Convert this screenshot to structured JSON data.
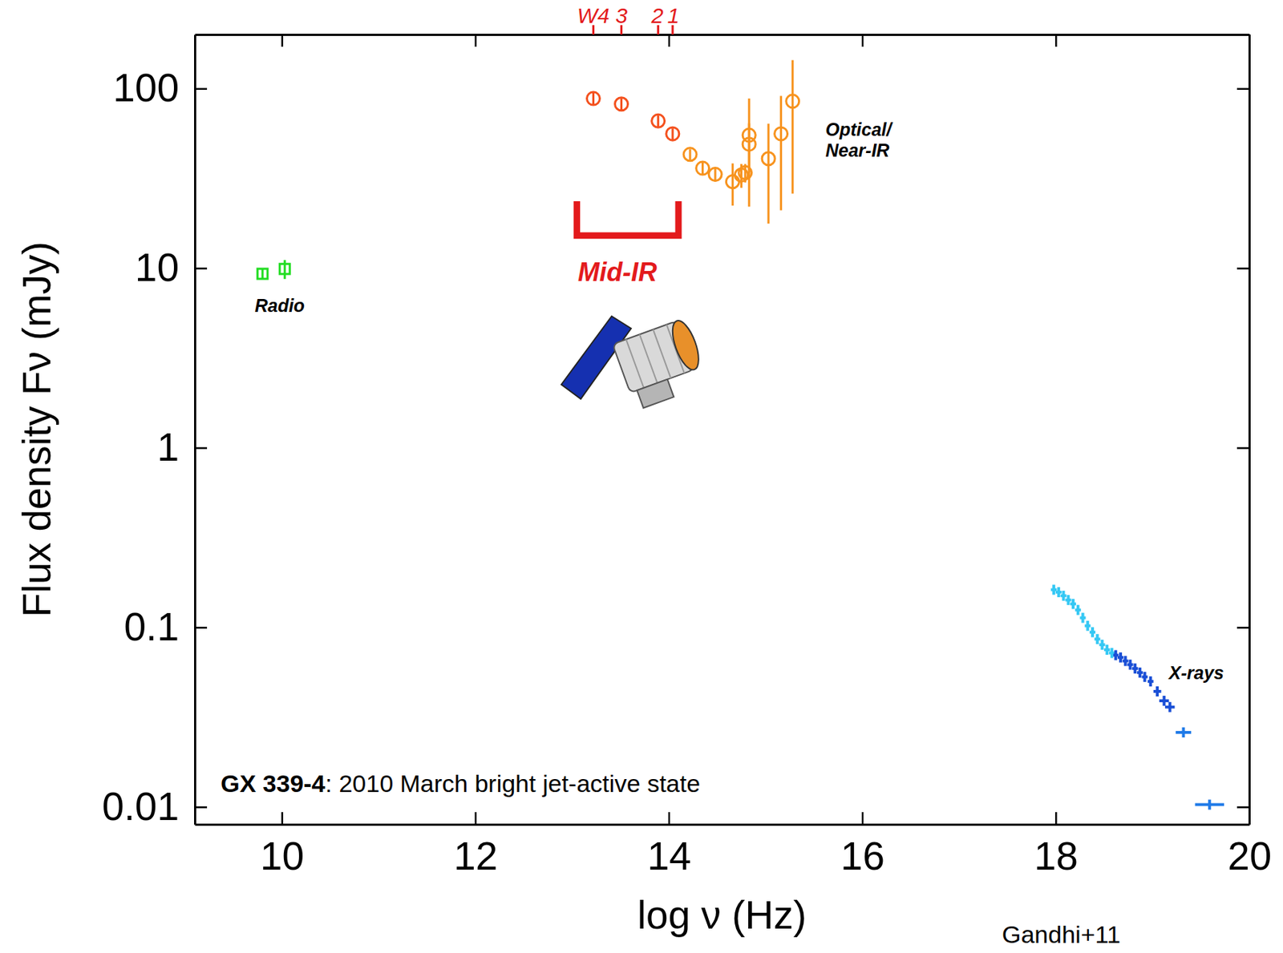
{
  "chart_data": {
    "type": "scatter",
    "x_label": "log ν (Hz)",
    "y_label": "Flux density Fν (mJy)",
    "xlim": [
      9.1,
      20
    ],
    "ylim": [
      0.008,
      200
    ],
    "xticks": [
      10,
      12,
      14,
      16,
      18,
      20
    ],
    "yticks": [
      0.01,
      0.1,
      1,
      10,
      100
    ],
    "log": "y",
    "grid": false,
    "series": [
      {
        "color": "#22dd22",
        "marker": "square",
        "x": [
          9.8,
          10.03
        ],
        "values": [
          9.3,
          9.9
        ],
        "errors": [
          0.6,
          1.2
        ]
      },
      {
        "color": "#f4511e",
        "marker": "circle",
        "x": [
          13.22,
          13.51,
          13.89,
          14.04
        ],
        "values": [
          88,
          82,
          66,
          56
        ],
        "errors": [
          7,
          6,
          5,
          4
        ]
      },
      {
        "color": "#f7931e",
        "marker": "circle",
        "x": [
          14.22,
          14.35,
          14.48,
          14.66,
          14.75,
          14.79,
          14.83,
          14.83,
          15.03,
          15.16,
          15.28
        ],
        "values": [
          43,
          36,
          33.3,
          30.3,
          33,
          34,
          49,
          55,
          40.7,
          56,
          85
        ],
        "errors": [
          3,
          3,
          3,
          8,
          5,
          4,
          15,
          33,
          23,
          35,
          59
        ]
      },
      {
        "marker": "cross",
        "x": [
          17.98,
          18.03,
          18.08,
          18.13,
          18.18,
          18.23,
          18.28,
          18.33,
          18.38,
          18.43,
          18.48,
          18.53,
          18.58,
          18.62,
          18.67,
          18.72,
          18.77,
          18.82,
          18.87,
          18.92,
          18.98,
          19.05,
          19.12,
          19.18,
          19.32,
          19.59
        ],
        "values": [
          0.162,
          0.157,
          0.15,
          0.142,
          0.135,
          0.125,
          0.113,
          0.102,
          0.094,
          0.086,
          0.08,
          0.075,
          0.072,
          0.07,
          0.068,
          0.065,
          0.062,
          0.059,
          0.056,
          0.053,
          0.05,
          0.044,
          0.039,
          0.036,
          0.026,
          0.0103
        ],
        "x_errors": [
          0.03,
          0.03,
          0.03,
          0.03,
          0.03,
          0.03,
          0.03,
          0.03,
          0.03,
          0.03,
          0.03,
          0.03,
          0.03,
          0.03,
          0.03,
          0.03,
          0.03,
          0.03,
          0.03,
          0.03,
          0.03,
          0.04,
          0.05,
          0.05,
          0.08,
          0.15
        ],
        "colors": [
          "#35c8f4",
          "#35c8f4",
          "#35c8f4",
          "#35c8f4",
          "#35c8f4",
          "#35c8f4",
          "#35c8f4",
          "#35c8f4",
          "#35c8f4",
          "#35c8f4",
          "#35c8f4",
          "#35c8f4",
          "#35c8f4",
          "#1a4fd6",
          "#1a4fd6",
          "#1a4fd6",
          "#1a4fd6",
          "#1a4fd6",
          "#1a4fd6",
          "#1a4fd6",
          "#1a4fd6",
          "#1a4fd6",
          "#1a4fd6",
          "#1a4fd6",
          "#1f7ae8",
          "#1f7ae8"
        ]
      }
    ],
    "annotations": [
      {
        "text": "Radio",
        "x": 9.72,
        "y": 6.05
      },
      {
        "text": "Mid-IR",
        "x": 13.06,
        "y": 9.3,
        "color": "#e31a1c",
        "bracket": {
          "x": [
            13.05,
            14.1
          ],
          "y": [
            15.2,
            23.6
          ]
        }
      },
      {
        "text": "Optical/Near-IR",
        "x": 15.62,
        "y": 50.6
      },
      {
        "text": "X-rays",
        "x": 19.17,
        "y": 0.0545
      }
    ],
    "top_labels": {
      "labels": [
        "W4",
        "3",
        "2",
        "1"
      ],
      "x": [
        13.22,
        13.51,
        13.89,
        14.04
      ],
      "color": "#e31a1c"
    },
    "caption": {
      "bold": "GX 339-4",
      "text": ": 2010 March bright jet-active state"
    },
    "credit": "Gandhi+11"
  }
}
